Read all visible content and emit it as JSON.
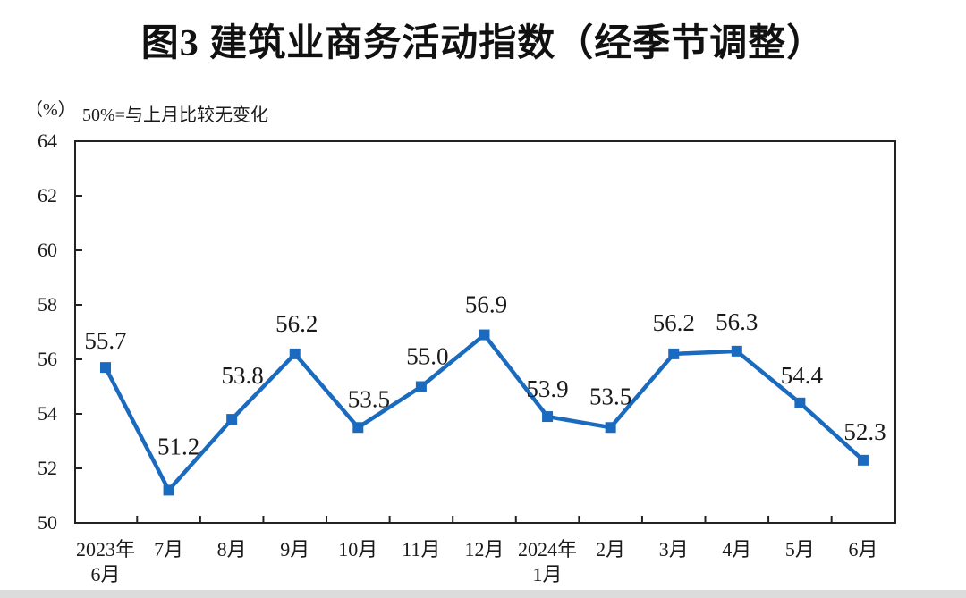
{
  "title": "图3  建筑业商务活动指数（经季节调整）",
  "unit_label": "（%）",
  "note": "50%=与上月比较无变化",
  "colors": {
    "line": "#1a6bbf",
    "axis": "#222222",
    "text": "#1a1a1a",
    "footer_strip": "#dcdcdc"
  },
  "chart_data": {
    "type": "line",
    "title": "图3 建筑业商务活动指数（经季节调整）",
    "x_labels": [
      [
        "2023年",
        "6月"
      ],
      [
        "7月"
      ],
      [
        "8月"
      ],
      [
        "9月"
      ],
      [
        "10月"
      ],
      [
        "11月"
      ],
      [
        "12月"
      ],
      [
        "2024年",
        "1月"
      ],
      [
        "2月"
      ],
      [
        "3月"
      ],
      [
        "4月"
      ],
      [
        "5月"
      ],
      [
        "6月"
      ]
    ],
    "values": [
      55.7,
      51.2,
      53.8,
      56.2,
      53.5,
      55.0,
      56.9,
      53.9,
      53.5,
      56.2,
      56.3,
      54.4,
      52.3
    ],
    "data_labels": [
      "55.7",
      "51.2",
      "53.8",
      "56.2",
      "53.5",
      "55.0",
      "56.9",
      "53.9",
      "53.5",
      "56.2",
      "56.3",
      "54.4",
      "52.3"
    ],
    "ylabel_unit": "%",
    "ylim": [
      50,
      64
    ],
    "yticks": [
      64,
      62,
      60,
      58,
      56,
      54,
      52,
      50
    ],
    "grid": false,
    "legend": "none",
    "marker": "square",
    "line_color": "#1a6bbf"
  }
}
